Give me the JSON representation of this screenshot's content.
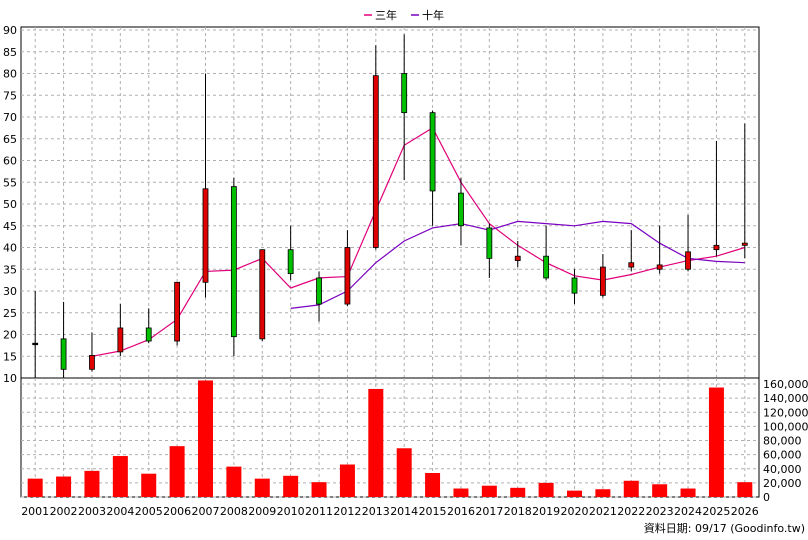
{
  "legend": {
    "ma3_label": "三年",
    "ma10_label": "十年",
    "ma3_color": "#e0007a",
    "ma10_color": "#7a00c0"
  },
  "footer": {
    "source_text": "資料日期: 09/17  (Goodinfo.tw)"
  },
  "colors": {
    "up_candle": "#e00000",
    "down_candle": "#00c000",
    "volume_bar": "#ff0000",
    "grid": "#b0b0b0"
  },
  "chart_data": [
    {
      "type": "candlestick",
      "title": "",
      "grid": true,
      "legend_position": "top-center",
      "ylim": [
        10,
        90
      ],
      "yticks": [
        10,
        15,
        20,
        25,
        30,
        35,
        40,
        45,
        50,
        55,
        60,
        65,
        70,
        75,
        80,
        85,
        90
      ],
      "x": [
        "2001",
        "2002",
        "2003",
        "2004",
        "2005",
        "2006",
        "2007",
        "2008",
        "2009",
        "2010",
        "2011",
        "2012",
        "2013",
        "2014",
        "2015",
        "2016",
        "2017",
        "2018",
        "2019",
        "2020",
        "2021",
        "2022",
        "2023",
        "2024",
        "2025",
        "2026"
      ],
      "candles": [
        {
          "open": 18.0,
          "close": 18.0,
          "high": 30.0,
          "low": 10.0
        },
        {
          "open": 19.0,
          "close": 12.0,
          "high": 27.5,
          "low": 10.0
        },
        {
          "open": 12.0,
          "close": 15.2,
          "high": 20.5,
          "low": 11.5
        },
        {
          "open": 16.0,
          "close": 21.5,
          "high": 27.0,
          "low": 15.0
        },
        {
          "open": 21.5,
          "close": 18.5,
          "high": 26.0,
          "low": 18.0
        },
        {
          "open": 18.5,
          "close": 32.0,
          "high": 32.0,
          "low": 17.5
        },
        {
          "open": 32.0,
          "close": 53.5,
          "high": 80.0,
          "low": 28.5
        },
        {
          "open": 54.0,
          "close": 19.5,
          "high": 56.0,
          "low": 15.0
        },
        {
          "open": 19.0,
          "close": 39.5,
          "high": 39.5,
          "low": 18.5
        },
        {
          "open": 39.5,
          "close": 34.0,
          "high": 45.0,
          "low": 32.5
        },
        {
          "open": 33.0,
          "close": 27.0,
          "high": 34.5,
          "low": 23.0
        },
        {
          "open": 27.0,
          "close": 40.0,
          "high": 44.0,
          "low": 26.5
        },
        {
          "open": 40.0,
          "close": 79.5,
          "high": 86.5,
          "low": 39.5
        },
        {
          "open": 80.0,
          "close": 71.0,
          "high": 89.0,
          "low": 55.5
        },
        {
          "open": 71.0,
          "close": 53.0,
          "high": 71.5,
          "low": 45.0
        },
        {
          "open": 52.5,
          "close": 45.0,
          "high": 56.0,
          "low": 40.5
        },
        {
          "open": 44.5,
          "close": 37.5,
          "high": 45.5,
          "low": 33.0
        },
        {
          "open": 37.0,
          "close": 38.0,
          "high": 41.5,
          "low": 35.5
        },
        {
          "open": 38.0,
          "close": 33.0,
          "high": 45.0,
          "low": 32.5
        },
        {
          "open": 33.0,
          "close": 29.5,
          "high": 35.0,
          "low": 27.0
        },
        {
          "open": 29.0,
          "close": 35.5,
          "high": 38.5,
          "low": 28.5
        },
        {
          "open": 35.5,
          "close": 36.5,
          "high": 44.0,
          "low": 34.5
        },
        {
          "open": 35.0,
          "close": 36.0,
          "high": 45.0,
          "low": 34.0
        },
        {
          "open": 35.0,
          "close": 39.0,
          "high": 47.5,
          "low": 34.5
        },
        {
          "open": 39.5,
          "close": 40.5,
          "high": 64.5,
          "low": 38.0
        },
        {
          "open": 40.5,
          "close": 41.0,
          "high": 68.5,
          "low": 37.5
        }
      ],
      "series": [
        {
          "name": "三年",
          "values": [
            null,
            null,
            15.0,
            16.2,
            18.8,
            23.5,
            34.5,
            34.8,
            37.5,
            30.7,
            33.0,
            33.3,
            48.5,
            63.5,
            67.5,
            55.0,
            45.5,
            40.5,
            36.5,
            33.5,
            32.5,
            33.8,
            35.5,
            37.0,
            38.0,
            40.0
          ]
        },
        {
          "name": "十年",
          "values": [
            null,
            null,
            null,
            null,
            null,
            null,
            null,
            null,
            null,
            26.0,
            26.8,
            30.0,
            36.5,
            41.5,
            44.5,
            45.5,
            44.0,
            46.0,
            45.5,
            45.0,
            46.0,
            45.5,
            41.0,
            37.5,
            36.8,
            36.5
          ]
        }
      ]
    },
    {
      "type": "bar",
      "title": "",
      "grid": true,
      "ylim": [
        0,
        160000
      ],
      "yticks": [
        "0",
        "20,000",
        "40,000",
        "60,000",
        "80,000",
        "100,000",
        "120,000",
        "140,000",
        "160,000"
      ],
      "categories": [
        "2001",
        "2002",
        "2003",
        "2004",
        "2005",
        "2006",
        "2007",
        "2008",
        "2009",
        "2010",
        "2011",
        "2012",
        "2013",
        "2014",
        "2015",
        "2016",
        "2017",
        "2018",
        "2019",
        "2020",
        "2021",
        "2022",
        "2023",
        "2024",
        "2025",
        "2026"
      ],
      "values": [
        26000,
        29000,
        37000,
        58000,
        33000,
        72000,
        165000,
        43000,
        26000,
        30000,
        21000,
        46000,
        153000,
        69000,
        34000,
        12000,
        16000,
        13000,
        20000,
        9000,
        11000,
        23000,
        18000,
        12000,
        155000,
        21000
      ]
    }
  ]
}
